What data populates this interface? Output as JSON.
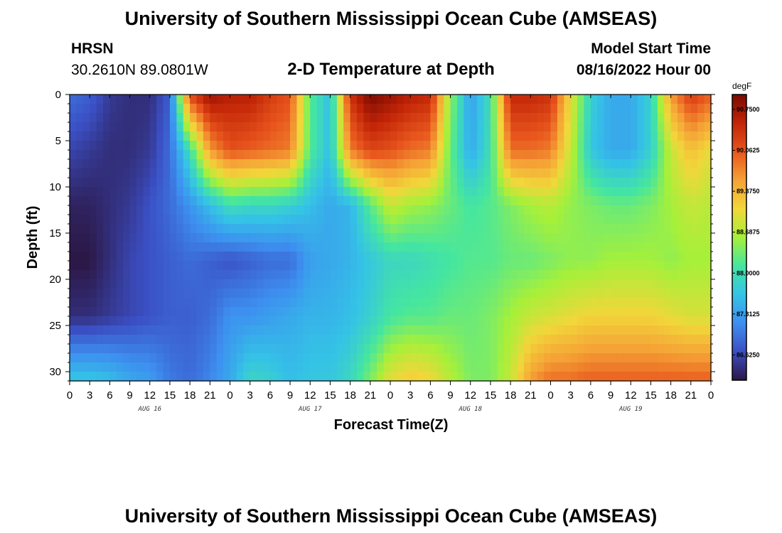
{
  "page": {
    "title": "University of Southern Mississippi Ocean Cube (AMSEAS)",
    "station": "HRSN",
    "coords": "30.2610N  89.0801W",
    "subtitle": "2-D Temperature at Depth",
    "model_label": "Model Start Time",
    "model_time": "08/16/2022 Hour 00",
    "footer_title": "University of Southern Mississippi Ocean Cube (AMSEAS)"
  },
  "colors": {
    "scale": [
      "#2c1745",
      "#3b4fc4",
      "#3d8ff0",
      "#34c3e6",
      "#45e6a0",
      "#a6f03a",
      "#f2d63a",
      "#f5a236",
      "#e8561d",
      "#c22507",
      "#7a0a02"
    ]
  },
  "chart_data": {
    "type": "heatmap",
    "title": "2-D Temperature at Depth",
    "xlabel": "Forecast Time(Z)",
    "ylabel": "Depth (ft)",
    "x_ticks": [
      "0",
      "3",
      "6",
      "9",
      "12",
      "15",
      "18",
      "21",
      "0",
      "3",
      "6",
      "9",
      "12",
      "15",
      "18",
      "21",
      "0",
      "3",
      "6",
      "9",
      "12",
      "15",
      "18",
      "21",
      "0",
      "3",
      "6",
      "9",
      "12",
      "15",
      "18",
      "21",
      "0"
    ],
    "x_range_hours": [
      0,
      96
    ],
    "day_labels": [
      {
        "label": "AUG 16",
        "hour": 12
      },
      {
        "label": "AUG 17",
        "hour": 36
      },
      {
        "label": "AUG 18",
        "hour": 60
      },
      {
        "label": "AUG 19",
        "hour": 84
      }
    ],
    "y_ticks": [
      "0",
      "5",
      "10",
      "15",
      "20",
      "25",
      "30"
    ],
    "y_range_ft": [
      0,
      31
    ],
    "colorbar": {
      "unit": "degF",
      "labels": [
        "90.7500",
        "90.0625",
        "89.3750",
        "88.6875",
        "88.0000",
        "87.3125",
        "86.6250"
      ],
      "range": [
        86.2,
        91.0
      ]
    },
    "depth_grid_ft": [
      0,
      6,
      12,
      18,
      24,
      31
    ],
    "hour_grid": [
      0,
      3,
      6,
      9,
      12,
      15,
      18,
      21,
      24,
      27,
      30,
      33,
      36,
      39,
      42,
      45,
      48,
      51,
      54,
      57,
      60,
      63,
      66,
      69,
      72,
      75,
      78,
      81,
      84,
      87,
      90,
      93,
      96
    ],
    "temperature_degF": [
      [
        86.9,
        86.8,
        86.5,
        86.4,
        86.4,
        86.8,
        90.2,
        90.8,
        90.6,
        90.6,
        90.3,
        90.1,
        88.2,
        87.6,
        90.4,
        91.0,
        90.8,
        90.6,
        90.5,
        88.5,
        87.3,
        88.0,
        90.5,
        90.5,
        90.4,
        89.0,
        87.8,
        87.4,
        87.4,
        87.8,
        89.6,
        90.3,
        90.0
      ],
      [
        86.6,
        86.5,
        86.4,
        86.4,
        86.5,
        86.9,
        88.0,
        89.6,
        90.1,
        90.0,
        89.9,
        89.8,
        88.2,
        87.6,
        89.8,
        90.2,
        90.1,
        89.9,
        89.8,
        88.3,
        87.4,
        88.0,
        89.9,
        89.9,
        89.8,
        88.8,
        87.7,
        87.4,
        87.4,
        87.8,
        88.8,
        89.3,
        89.0
      ],
      [
        86.3,
        86.3,
        86.4,
        86.5,
        86.7,
        86.9,
        87.2,
        87.6,
        88.0,
        87.9,
        87.9,
        87.8,
        87.6,
        87.4,
        87.5,
        88.2,
        88.8,
        88.6,
        88.5,
        88.3,
        88.1,
        88.2,
        88.4,
        88.6,
        88.7,
        88.5,
        88.4,
        88.3,
        88.3,
        88.4,
        88.6,
        88.8,
        88.7
      ],
      [
        86.2,
        86.2,
        86.4,
        86.6,
        86.7,
        86.8,
        86.9,
        86.8,
        86.7,
        86.8,
        86.9,
        86.9,
        87.3,
        87.4,
        87.5,
        87.7,
        87.9,
        87.9,
        88.0,
        88.1,
        88.2,
        88.2,
        88.3,
        88.3,
        88.4,
        88.5,
        88.5,
        88.6,
        88.6,
        88.6,
        88.5,
        88.6,
        88.6
      ],
      [
        86.4,
        86.4,
        86.5,
        86.6,
        86.7,
        86.8,
        86.8,
        86.9,
        87.2,
        87.2,
        87.3,
        87.4,
        87.5,
        87.5,
        87.6,
        87.8,
        88.1,
        88.2,
        88.2,
        88.3,
        88.3,
        88.4,
        88.6,
        88.8,
        88.9,
        89.0,
        89.1,
        89.1,
        89.1,
        89.1,
        89.0,
        88.9,
        88.9
      ],
      [
        87.7,
        87.7,
        87.6,
        87.4,
        87.3,
        87.0,
        86.9,
        87.1,
        87.4,
        87.9,
        87.8,
        87.6,
        87.7,
        87.7,
        87.9,
        88.4,
        89.0,
        89.2,
        89.1,
        88.7,
        88.4,
        88.4,
        88.8,
        89.6,
        89.9,
        89.9,
        90.0,
        90.0,
        90.0,
        90.0,
        90.0,
        90.0,
        90.0
      ]
    ]
  }
}
